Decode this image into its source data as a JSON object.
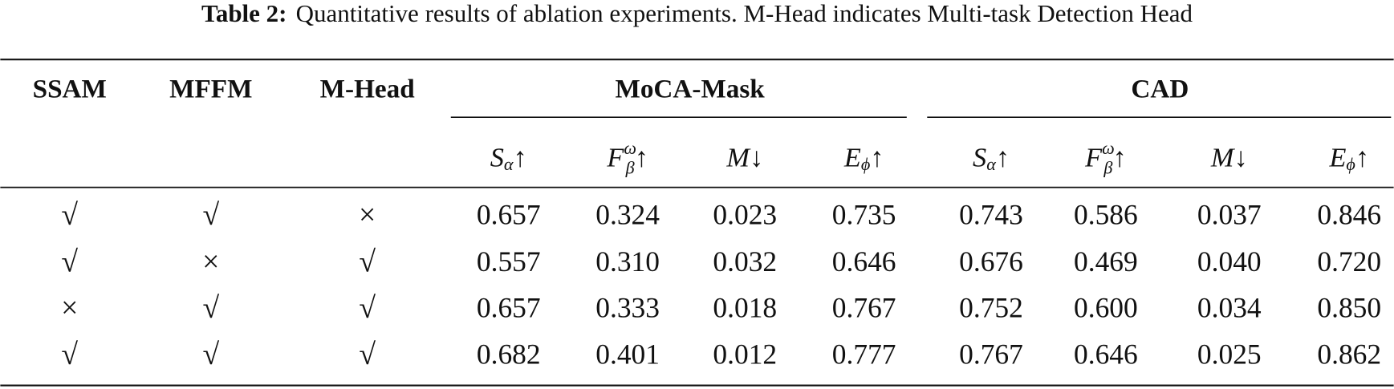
{
  "caption": {
    "label": "Table 2:",
    "text": "Quantitative results of ablation experiments. M-Head indicates Multi-task Detection Head"
  },
  "table": {
    "headers": [
      "SSAM",
      "MFFM",
      "M-Head"
    ],
    "groups": [
      "MoCA-Mask",
      "CAD"
    ],
    "metrics": [
      {
        "base": "S",
        "sub": "α",
        "arrow": "↑"
      },
      {
        "base": "F",
        "sup": "ω",
        "sub": "β",
        "arrow": "↑"
      },
      {
        "base": "M",
        "arrow": "↓"
      },
      {
        "base": "E",
        "sub": "ϕ",
        "arrow": "↑"
      },
      {
        "base": "S",
        "sub": "α",
        "arrow": "↑"
      },
      {
        "base": "F",
        "sup": "ω",
        "sub": "β",
        "arrow": "↑"
      },
      {
        "base": "M",
        "arrow": "↓"
      },
      {
        "base": "E",
        "sub": "ϕ",
        "arrow": "↑"
      }
    ],
    "rows": [
      [
        "√",
        "√",
        "×",
        "0.657",
        "0.324",
        "0.023",
        "0.735",
        "0.743",
        "0.586",
        "0.037",
        "0.846"
      ],
      [
        "√",
        "×",
        "√",
        "0.557",
        "0.310",
        "0.032",
        "0.646",
        "0.676",
        "0.469",
        "0.040",
        "0.720"
      ],
      [
        "×",
        "√",
        "√",
        "0.657",
        "0.333",
        "0.018",
        "0.767",
        "0.752",
        "0.600",
        "0.034",
        "0.850"
      ],
      [
        "√",
        "√",
        "√",
        "0.682",
        "0.401",
        "0.012",
        "0.777",
        "0.767",
        "0.646",
        "0.025",
        "0.862"
      ]
    ]
  }
}
